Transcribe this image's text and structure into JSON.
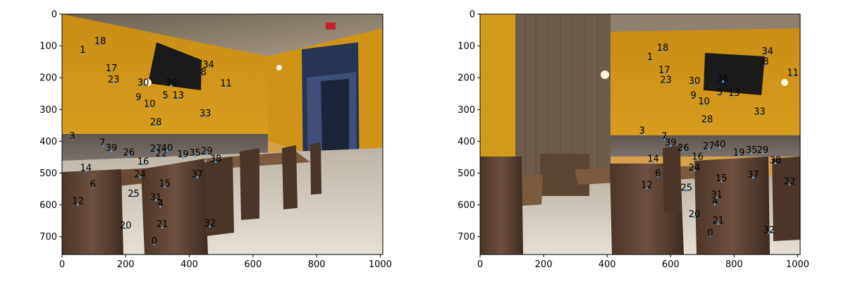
{
  "figure": {
    "background": "#ffffff",
    "axis_color": "#000000"
  },
  "panels": [
    {
      "id": "left",
      "xticks": [
        "0",
        "200",
        "400",
        "600",
        "800",
        "1000"
      ],
      "yticks": [
        "0",
        "100",
        "200",
        "300",
        "400",
        "500",
        "600",
        "700"
      ],
      "xlim": [
        0,
        1008
      ],
      "ylim": [
        756,
        0
      ],
      "keypoints": [
        {
          "label": "0",
          "x": 290,
          "y": 723
        },
        {
          "label": "1",
          "x": 65,
          "y": 122
        },
        {
          "label": "3",
          "x": 32,
          "y": 392
        },
        {
          "label": "4",
          "x": 310,
          "y": 605
        },
        {
          "label": "5",
          "x": 325,
          "y": 265
        },
        {
          "label": "6",
          "x": 97,
          "y": 544
        },
        {
          "label": "7",
          "x": 127,
          "y": 413
        },
        {
          "label": "8",
          "x": 445,
          "y": 192
        },
        {
          "label": "9",
          "x": 240,
          "y": 270
        },
        {
          "label": "10",
          "x": 275,
          "y": 291
        },
        {
          "label": "11",
          "x": 515,
          "y": 227
        },
        {
          "label": "12",
          "x": 50,
          "y": 598
        },
        {
          "label": "13",
          "x": 365,
          "y": 265
        },
        {
          "label": "14",
          "x": 75,
          "y": 493
        },
        {
          "label": "15",
          "x": 323,
          "y": 542
        },
        {
          "label": "16",
          "x": 255,
          "y": 473
        },
        {
          "label": "17",
          "x": 155,
          "y": 180
        },
        {
          "label": "18",
          "x": 120,
          "y": 94
        },
        {
          "label": "19",
          "x": 380,
          "y": 450
        },
        {
          "label": "20",
          "x": 200,
          "y": 674
        },
        {
          "label": "21",
          "x": 315,
          "y": 670
        },
        {
          "label": "22",
          "x": 312,
          "y": 448
        },
        {
          "label": "23",
          "x": 162,
          "y": 215
        },
        {
          "label": "24",
          "x": 245,
          "y": 513
        },
        {
          "label": "25",
          "x": 225,
          "y": 574
        },
        {
          "label": "26",
          "x": 210,
          "y": 444
        },
        {
          "label": "27",
          "x": 295,
          "y": 432
        },
        {
          "label": "28",
          "x": 295,
          "y": 349
        },
        {
          "label": "29",
          "x": 455,
          "y": 440
        },
        {
          "label": "30",
          "x": 255,
          "y": 225
        },
        {
          "label": "31",
          "x": 295,
          "y": 585
        },
        {
          "label": "32",
          "x": 465,
          "y": 667
        },
        {
          "label": "33",
          "x": 450,
          "y": 322
        },
        {
          "label": "34",
          "x": 460,
          "y": 168
        },
        {
          "label": "35",
          "x": 418,
          "y": 446
        },
        {
          "label": "36",
          "x": 343,
          "y": 225
        },
        {
          "label": "37",
          "x": 425,
          "y": 513
        },
        {
          "label": "38",
          "x": 483,
          "y": 465
        },
        {
          "label": "39",
          "x": 155,
          "y": 430
        },
        {
          "label": "40",
          "x": 330,
          "y": 430
        }
      ]
    },
    {
      "id": "right",
      "xticks": [
        "0",
        "200",
        "400",
        "600",
        "800",
        "1000"
      ],
      "yticks": [
        "0",
        "100",
        "200",
        "300",
        "400",
        "500",
        "600",
        "700"
      ],
      "xlim": [
        0,
        1008
      ],
      "ylim": [
        756,
        0
      ],
      "keypoints": [
        {
          "label": "0",
          "x": 725,
          "y": 697
        },
        {
          "label": "1",
          "x": 535,
          "y": 144
        },
        {
          "label": "3",
          "x": 510,
          "y": 376
        },
        {
          "label": "4",
          "x": 740,
          "y": 598
        },
        {
          "label": "5",
          "x": 755,
          "y": 255
        },
        {
          "label": "6",
          "x": 560,
          "y": 510
        },
        {
          "label": "7",
          "x": 580,
          "y": 394
        },
        {
          "label": "8",
          "x": 900,
          "y": 158
        },
        {
          "label": "9",
          "x": 672,
          "y": 265
        },
        {
          "label": "10",
          "x": 705,
          "y": 284
        },
        {
          "label": "11",
          "x": 985,
          "y": 194
        },
        {
          "label": "12",
          "x": 525,
          "y": 547
        },
        {
          "label": "13",
          "x": 800,
          "y": 257
        },
        {
          "label": "14",
          "x": 545,
          "y": 465
        },
        {
          "label": "15",
          "x": 760,
          "y": 525
        },
        {
          "label": "16",
          "x": 685,
          "y": 458
        },
        {
          "label": "17",
          "x": 580,
          "y": 185
        },
        {
          "label": "18",
          "x": 575,
          "y": 115
        },
        {
          "label": "19",
          "x": 815,
          "y": 444
        },
        {
          "label": "20",
          "x": 675,
          "y": 638
        },
        {
          "label": "21",
          "x": 750,
          "y": 659
        },
        {
          "label": "22",
          "x": 975,
          "y": 535
        },
        {
          "label": "23",
          "x": 585,
          "y": 216
        },
        {
          "label": "24",
          "x": 675,
          "y": 492
        },
        {
          "label": "25",
          "x": 650,
          "y": 555
        },
        {
          "label": "26",
          "x": 640,
          "y": 430
        },
        {
          "label": "27",
          "x": 720,
          "y": 425
        },
        {
          "label": "28",
          "x": 715,
          "y": 340
        },
        {
          "label": "29",
          "x": 890,
          "y": 437
        },
        {
          "label": "30",
          "x": 675,
          "y": 220
        },
        {
          "label": "31",
          "x": 745,
          "y": 577
        },
        {
          "label": "32",
          "x": 910,
          "y": 688
        },
        {
          "label": "33",
          "x": 880,
          "y": 316
        },
        {
          "label": "34",
          "x": 905,
          "y": 126
        },
        {
          "label": "35",
          "x": 855,
          "y": 437
        },
        {
          "label": "36",
          "x": 765,
          "y": 212
        },
        {
          "label": "37",
          "x": 860,
          "y": 514
        },
        {
          "label": "38",
          "x": 930,
          "y": 469
        },
        {
          "label": "39",
          "x": 600,
          "y": 414
        },
        {
          "label": "40",
          "x": 755,
          "y": 419
        }
      ]
    }
  ]
}
